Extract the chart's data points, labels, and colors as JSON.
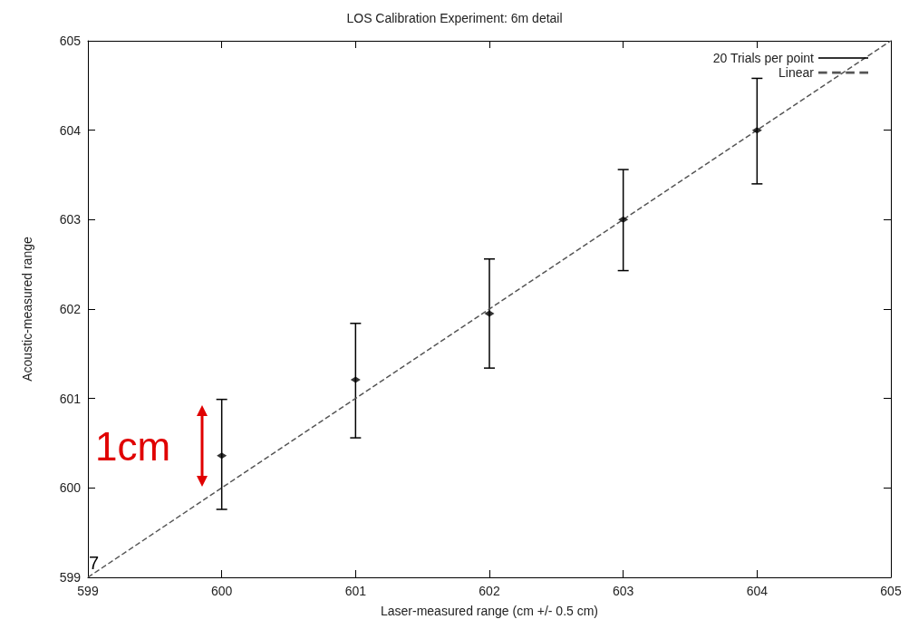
{
  "chart_data": {
    "type": "scatter",
    "title": "LOS Calibration Experiment: 6m detail",
    "xlabel": "Laser-measured range (cm +/- 0.5 cm)",
    "ylabel": "Acoustic-measured range",
    "x": [
      600,
      601,
      602,
      603,
      604
    ],
    "series": [
      {
        "name": "20 Trials per point",
        "marker": "diamond",
        "color": "#000000",
        "values": [
          600.36,
          601.21,
          601.95,
          603.0,
          604.0
        ],
        "errors": [
          [
            599.76,
            600.99
          ],
          [
            600.56,
            601.84
          ],
          [
            601.34,
            602.56
          ],
          [
            602.43,
            603.56
          ],
          [
            603.4,
            604.58
          ]
        ]
      },
      {
        "name": "Linear",
        "type": "line",
        "color": "#555555",
        "line_style": "dashed",
        "marker": "none",
        "x": [
          599,
          605
        ],
        "values": [
          599,
          605
        ]
      }
    ],
    "xlim": [
      599,
      605
    ],
    "xticks": [
      599,
      600,
      601,
      602,
      603,
      604,
      605
    ],
    "ylim": [
      599,
      605
    ],
    "yticks": [
      599,
      600,
      601,
      602,
      603,
      604,
      605
    ],
    "grid": false,
    "legend": "top right",
    "annotations": [
      "1cm",
      "7"
    ]
  }
}
